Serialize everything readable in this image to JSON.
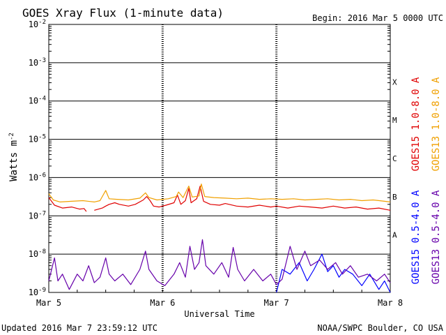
{
  "chart_data": {
    "type": "line",
    "title": "GOES Xray Flux (1-minute data)",
    "begin_label": "Begin:  2016 Mar 5 0000 UTC",
    "xlabel": "Universal Time",
    "ylabel": "Watts m",
    "ylabel_superscript": "-2",
    "log_scale": true,
    "ylim": [
      "1e-9",
      "1e-2"
    ],
    "xlim": [
      "2016-03-05T00:00Z",
      "2016-03-08T00:00Z"
    ],
    "y_ticks": [
      {
        "base": "10",
        "exp": "-2",
        "value": 0.01
      },
      {
        "base": "10",
        "exp": "-3",
        "value": 0.001
      },
      {
        "base": "10",
        "exp": "-4",
        "value": 0.0001
      },
      {
        "base": "10",
        "exp": "-5",
        "value": 1e-05
      },
      {
        "base": "10",
        "exp": "-6",
        "value": 1e-06
      },
      {
        "base": "10",
        "exp": "-7",
        "value": 1e-07
      },
      {
        "base": "10",
        "exp": "-8",
        "value": 1e-08
      },
      {
        "base": "10",
        "exp": "-9",
        "value": 1e-09
      }
    ],
    "x_ticks": [
      {
        "label": "Mar 5",
        "day": 0
      },
      {
        "label": "Mar 6",
        "day": 1
      },
      {
        "label": "Mar 7",
        "day": 2
      },
      {
        "label": "Mar 8",
        "day": 3
      }
    ],
    "flare_classes": [
      {
        "label": "X",
        "value": 0.0001
      },
      {
        "label": "M",
        "value": 1e-05
      },
      {
        "label": "C",
        "value": 1e-06
      },
      {
        "label": "B",
        "value": 1e-07
      },
      {
        "label": "A",
        "value": 1e-08
      }
    ],
    "grid": true,
    "legend_position": "right (vertical)",
    "series": [
      {
        "name": "GOES15 1.0-8.0 A",
        "color": "#e00000",
        "points": [
          [
            0.0,
            3e-07
          ],
          [
            0.05,
            1.9e-07
          ],
          [
            0.12,
            1.6e-07
          ],
          [
            0.2,
            1.7e-07
          ],
          [
            0.27,
            1.5e-07
          ],
          [
            0.31,
            1.55e-07
          ],
          [
            0.33,
            1.3e-07
          ],
          [
            null,
            null
          ],
          [
            0.4,
            1.4e-07
          ],
          [
            0.47,
            1.6e-07
          ],
          [
            0.5,
            1.8e-07
          ],
          [
            0.53,
            2e-07
          ],
          [
            0.58,
            2.2e-07
          ],
          [
            0.62,
            2e-07
          ],
          [
            0.7,
            1.8e-07
          ],
          [
            0.76,
            2e-07
          ],
          [
            0.83,
            2.6e-07
          ],
          [
            0.86,
            3.2e-07
          ],
          [
            0.89,
            2.5e-07
          ],
          [
            0.92,
            1.8e-07
          ],
          [
            0.97,
            1.7e-07
          ],
          [
            1.03,
            1.9e-07
          ],
          [
            1.1,
            2.2e-07
          ],
          [
            1.13,
            3.5e-07
          ],
          [
            1.16,
            2e-07
          ],
          [
            1.2,
            2.5e-07
          ],
          [
            1.23,
            5.2e-07
          ],
          [
            1.25,
            2.2e-07
          ],
          [
            1.3,
            2.8e-07
          ],
          [
            1.33,
            6e-07
          ],
          [
            1.36,
            2.4e-07
          ],
          [
            1.42,
            2e-07
          ],
          [
            1.5,
            1.9e-07
          ],
          [
            1.55,
            2.1e-07
          ],
          [
            1.65,
            1.8e-07
          ],
          [
            1.75,
            1.7e-07
          ],
          [
            1.85,
            1.9e-07
          ],
          [
            1.95,
            1.7e-07
          ],
          [
            2.0,
            1.8e-07
          ],
          [
            2.1,
            1.6e-07
          ],
          [
            2.2,
            1.8e-07
          ],
          [
            2.3,
            1.7e-07
          ],
          [
            2.4,
            1.6e-07
          ],
          [
            2.5,
            1.8e-07
          ],
          [
            2.6,
            1.6e-07
          ],
          [
            2.7,
            1.7e-07
          ],
          [
            2.8,
            1.5e-07
          ],
          [
            2.9,
            1.6e-07
          ],
          [
            3.0,
            1.4e-07
          ]
        ]
      },
      {
        "name": "GOES13 1.0-8.0 A",
        "color": "#f0a000",
        "points": [
          [
            0.0,
            3.8e-07
          ],
          [
            0.04,
            2.6e-07
          ],
          [
            0.1,
            2.3e-07
          ],
          [
            0.2,
            2.4e-07
          ],
          [
            0.3,
            2.5e-07
          ],
          [
            0.4,
            2.3e-07
          ],
          [
            0.45,
            2.5e-07
          ],
          [
            0.5,
            4.6e-07
          ],
          [
            0.53,
            2.8e-07
          ],
          [
            0.6,
            2.7e-07
          ],
          [
            0.7,
            2.6e-07
          ],
          [
            0.8,
            2.9e-07
          ],
          [
            0.85,
            4e-07
          ],
          [
            0.88,
            3e-07
          ],
          [
            0.95,
            2.6e-07
          ],
          [
            1.05,
            2.8e-07
          ],
          [
            1.12,
            3.2e-07
          ],
          [
            1.14,
            4.2e-07
          ],
          [
            1.18,
            3e-07
          ],
          [
            1.23,
            6e-07
          ],
          [
            1.26,
            3.1e-07
          ],
          [
            1.32,
            3.3e-07
          ],
          [
            1.34,
            6.8e-07
          ],
          [
            1.37,
            3.2e-07
          ],
          [
            1.45,
            3e-07
          ],
          [
            1.55,
            2.9e-07
          ],
          [
            1.65,
            2.8e-07
          ],
          [
            1.75,
            2.9e-07
          ],
          [
            1.85,
            2.7e-07
          ],
          [
            1.95,
            2.8e-07
          ],
          [
            2.05,
            2.7e-07
          ],
          [
            2.15,
            2.8e-07
          ],
          [
            2.25,
            2.6e-07
          ],
          [
            2.35,
            2.7e-07
          ],
          [
            2.45,
            2.8e-07
          ],
          [
            2.55,
            2.6e-07
          ],
          [
            2.65,
            2.7e-07
          ],
          [
            2.75,
            2.5e-07
          ],
          [
            2.85,
            2.6e-07
          ],
          [
            2.95,
            2.4e-07
          ],
          [
            3.0,
            2.3e-07
          ]
        ]
      },
      {
        "name": "GOES15 0.5-4.0 A",
        "color": "#0000ff",
        "points": [
          [
            2.0,
            1e-09
          ],
          [
            2.05,
            4e-09
          ],
          [
            2.12,
            3e-09
          ],
          [
            2.2,
            6e-09
          ],
          [
            2.27,
            2e-09
          ],
          [
            2.33,
            4e-09
          ],
          [
            2.4,
            1e-08
          ],
          [
            2.45,
            3.5e-09
          ],
          [
            2.5,
            5e-09
          ],
          [
            2.55,
            2.5e-09
          ],
          [
            2.6,
            4e-09
          ],
          [
            2.67,
            3e-09
          ],
          [
            2.75,
            1.5e-09
          ],
          [
            2.82,
            3e-09
          ],
          [
            2.9,
            1.2e-09
          ],
          [
            2.95,
            2e-09
          ],
          [
            3.0,
            1e-09
          ]
        ]
      },
      {
        "name": "GOES13 0.5-4.0 A",
        "color": "#6600aa",
        "points": [
          [
            0.0,
            2e-09
          ],
          [
            0.05,
            8e-09
          ],
          [
            0.08,
            2e-09
          ],
          [
            0.12,
            3e-09
          ],
          [
            0.18,
            1.2e-09
          ],
          [
            0.25,
            3e-09
          ],
          [
            0.3,
            2e-09
          ],
          [
            0.35,
            5e-09
          ],
          [
            0.4,
            1.8e-09
          ],
          [
            0.45,
            2.5e-09
          ],
          [
            0.5,
            8e-09
          ],
          [
            0.53,
            3e-09
          ],
          [
            0.58,
            2e-09
          ],
          [
            0.65,
            3e-09
          ],
          [
            0.72,
            1.6e-09
          ],
          [
            0.8,
            4e-09
          ],
          [
            0.85,
            1.2e-08
          ],
          [
            0.88,
            4e-09
          ],
          [
            0.95,
            2e-09
          ],
          [
            1.02,
            1.5e-09
          ],
          [
            1.1,
            3e-09
          ],
          [
            1.15,
            6e-09
          ],
          [
            1.2,
            2.5e-09
          ],
          [
            1.24,
            1.6e-08
          ],
          [
            1.28,
            4e-09
          ],
          [
            1.32,
            6e-09
          ],
          [
            1.35,
            2.4e-08
          ],
          [
            1.38,
            5e-09
          ],
          [
            1.45,
            3e-09
          ],
          [
            1.52,
            6e-09
          ],
          [
            1.58,
            2.5e-09
          ],
          [
            1.62,
            1.5e-08
          ],
          [
            1.66,
            4e-09
          ],
          [
            1.72,
            2e-09
          ],
          [
            1.8,
            4e-09
          ],
          [
            1.88,
            2e-09
          ],
          [
            1.95,
            3e-09
          ],
          [
            2.0,
            1.6e-09
          ],
          [
            2.05,
            2.2e-09
          ],
          [
            2.12,
            1.6e-08
          ],
          [
            2.18,
            4e-09
          ],
          [
            2.25,
            1.2e-08
          ],
          [
            2.3,
            5e-09
          ],
          [
            2.38,
            7e-09
          ],
          [
            2.45,
            4e-09
          ],
          [
            2.52,
            6e-09
          ],
          [
            2.58,
            3e-09
          ],
          [
            2.65,
            5e-09
          ],
          [
            2.72,
            2.5e-09
          ],
          [
            2.8,
            3e-09
          ],
          [
            2.88,
            2e-09
          ],
          [
            2.95,
            3e-09
          ],
          [
            3.0,
            1.8e-09
          ]
        ]
      }
    ]
  },
  "footer": {
    "updated": "Updated 2016 Mar  7 23:59:12 UTC",
    "credit": "NOAA/SWPC Boulder, CO USA"
  }
}
